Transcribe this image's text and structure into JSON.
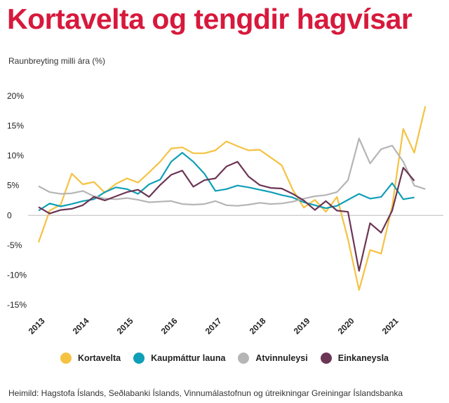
{
  "header": {
    "title": "Kortavelta og tengdir hagvísar",
    "subtitle": "Raunbreyting milli ára (%)"
  },
  "source": "Heimild: Hagstofa Íslands, Seðlabanki Íslands, Vinnumálastofnun og útreikningar Greiningar Íslandsbanka",
  "chart_data": {
    "type": "line",
    "title": "Kortavelta og tengdir hagvísar",
    "ylabel": "Raunbreyting milli ára (%)",
    "ylim": [
      -15,
      20
    ],
    "yticks": [
      20,
      15,
      10,
      5,
      0,
      -5,
      -10,
      -15
    ],
    "ytick_labels": [
      "20%",
      "15%",
      "10%",
      "5%",
      "0",
      "-5%",
      "-10%",
      "-15%"
    ],
    "xlim": [
      2013,
      2022
    ],
    "xticks": [
      "2013",
      "2014",
      "2015",
      "2016",
      "2017",
      "2018",
      "2019",
      "2020",
      "2021"
    ],
    "grid": false,
    "legend_position": "bottom",
    "series": [
      {
        "name": "Kortavelta",
        "color": "#f5c242",
        "points": [
          [
            2013.0,
            -4.5
          ],
          [
            2013.25,
            0.8
          ],
          [
            2013.5,
            1.8
          ],
          [
            2013.75,
            7.0
          ],
          [
            2014.0,
            5.2
          ],
          [
            2014.25,
            5.6
          ],
          [
            2014.5,
            3.8
          ],
          [
            2014.75,
            5.3
          ],
          [
            2015.0,
            6.2
          ],
          [
            2015.25,
            5.5
          ],
          [
            2015.5,
            7.2
          ],
          [
            2015.75,
            9.0
          ],
          [
            2016.0,
            11.2
          ],
          [
            2016.25,
            11.4
          ],
          [
            2016.5,
            10.4
          ],
          [
            2016.75,
            10.4
          ],
          [
            2017.0,
            10.9
          ],
          [
            2017.25,
            12.4
          ],
          [
            2017.5,
            11.6
          ],
          [
            2017.75,
            10.9
          ],
          [
            2018.0,
            11.0
          ],
          [
            2018.25,
            9.7
          ],
          [
            2018.5,
            8.4
          ],
          [
            2018.75,
            4.3
          ],
          [
            2019.0,
            1.3
          ],
          [
            2019.25,
            2.6
          ],
          [
            2019.5,
            0.6
          ],
          [
            2019.75,
            3.1
          ],
          [
            2020.0,
            -4.0
          ],
          [
            2020.25,
            -12.5
          ],
          [
            2020.5,
            -5.8
          ],
          [
            2020.75,
            -6.4
          ],
          [
            2021.0,
            1.5
          ],
          [
            2021.25,
            14.5
          ],
          [
            2021.5,
            10.5
          ],
          [
            2021.75,
            18.3
          ]
        ]
      },
      {
        "name": "Kaupmáttur launa",
        "color": "#0f9fb6",
        "points": [
          [
            2013.0,
            0.8
          ],
          [
            2013.25,
            2.0
          ],
          [
            2013.5,
            1.5
          ],
          [
            2013.75,
            1.9
          ],
          [
            2014.0,
            2.4
          ],
          [
            2014.25,
            2.7
          ],
          [
            2014.5,
            3.9
          ],
          [
            2014.75,
            4.7
          ],
          [
            2015.0,
            4.4
          ],
          [
            2015.25,
            3.6
          ],
          [
            2015.5,
            5.2
          ],
          [
            2015.75,
            6.0
          ],
          [
            2016.0,
            9.0
          ],
          [
            2016.25,
            10.5
          ],
          [
            2016.5,
            9.0
          ],
          [
            2016.75,
            7.0
          ],
          [
            2017.0,
            4.1
          ],
          [
            2017.25,
            4.4
          ],
          [
            2017.5,
            5.0
          ],
          [
            2017.75,
            4.7
          ],
          [
            2018.0,
            4.3
          ],
          [
            2018.25,
            3.9
          ],
          [
            2018.5,
            3.4
          ],
          [
            2018.75,
            3.0
          ],
          [
            2019.0,
            2.2
          ],
          [
            2019.25,
            1.7
          ],
          [
            2019.5,
            1.2
          ],
          [
            2019.75,
            1.6
          ],
          [
            2020.0,
            2.6
          ],
          [
            2020.25,
            3.6
          ],
          [
            2020.5,
            2.8
          ],
          [
            2020.75,
            3.1
          ],
          [
            2021.0,
            5.4
          ],
          [
            2021.25,
            2.7
          ],
          [
            2021.5,
            3.0
          ]
        ]
      },
      {
        "name": "Atvinnuleysi",
        "color": "#b5b5b5",
        "points": [
          [
            2013.0,
            4.9
          ],
          [
            2013.25,
            3.9
          ],
          [
            2013.5,
            3.6
          ],
          [
            2013.75,
            3.7
          ],
          [
            2014.0,
            4.1
          ],
          [
            2014.25,
            3.2
          ],
          [
            2014.5,
            2.8
          ],
          [
            2014.75,
            2.7
          ],
          [
            2015.0,
            2.9
          ],
          [
            2015.25,
            2.6
          ],
          [
            2015.5,
            2.2
          ],
          [
            2015.75,
            2.3
          ],
          [
            2016.0,
            2.4
          ],
          [
            2016.25,
            1.9
          ],
          [
            2016.5,
            1.8
          ],
          [
            2016.75,
            1.9
          ],
          [
            2017.0,
            2.4
          ],
          [
            2017.25,
            1.7
          ],
          [
            2017.5,
            1.6
          ],
          [
            2017.75,
            1.8
          ],
          [
            2018.0,
            2.1
          ],
          [
            2018.25,
            1.9
          ],
          [
            2018.5,
            2.0
          ],
          [
            2018.75,
            2.3
          ],
          [
            2019.0,
            2.8
          ],
          [
            2019.25,
            3.2
          ],
          [
            2019.5,
            3.4
          ],
          [
            2019.75,
            3.9
          ],
          [
            2020.0,
            5.9
          ],
          [
            2020.25,
            12.9
          ],
          [
            2020.5,
            8.7
          ],
          [
            2020.75,
            11.1
          ],
          [
            2021.0,
            11.7
          ],
          [
            2021.25,
            9.0
          ],
          [
            2021.5,
            5.0
          ],
          [
            2021.75,
            4.4
          ]
        ]
      },
      {
        "name": "Einkaneysla",
        "color": "#6b3554",
        "points": [
          [
            2013.0,
            1.4
          ],
          [
            2013.25,
            0.3
          ],
          [
            2013.5,
            0.9
          ],
          [
            2013.75,
            1.1
          ],
          [
            2014.0,
            1.7
          ],
          [
            2014.25,
            3.1
          ],
          [
            2014.5,
            2.5
          ],
          [
            2014.75,
            3.2
          ],
          [
            2015.0,
            3.9
          ],
          [
            2015.25,
            4.3
          ],
          [
            2015.5,
            3.1
          ],
          [
            2015.75,
            5.1
          ],
          [
            2016.0,
            6.8
          ],
          [
            2016.25,
            7.5
          ],
          [
            2016.5,
            4.8
          ],
          [
            2016.75,
            5.9
          ],
          [
            2017.0,
            6.2
          ],
          [
            2017.25,
            8.2
          ],
          [
            2017.5,
            9.0
          ],
          [
            2017.75,
            6.5
          ],
          [
            2018.0,
            5.1
          ],
          [
            2018.25,
            4.6
          ],
          [
            2018.5,
            4.5
          ],
          [
            2018.75,
            3.6
          ],
          [
            2019.0,
            2.5
          ],
          [
            2019.25,
            0.9
          ],
          [
            2019.5,
            2.4
          ],
          [
            2019.75,
            0.8
          ],
          [
            2020.0,
            0.6
          ],
          [
            2020.25,
            -9.3
          ],
          [
            2020.5,
            -1.3
          ],
          [
            2020.75,
            -2.9
          ],
          [
            2021.0,
            0.8
          ],
          [
            2021.25,
            8.0
          ],
          [
            2021.5,
            5.8
          ]
        ]
      }
    ]
  }
}
